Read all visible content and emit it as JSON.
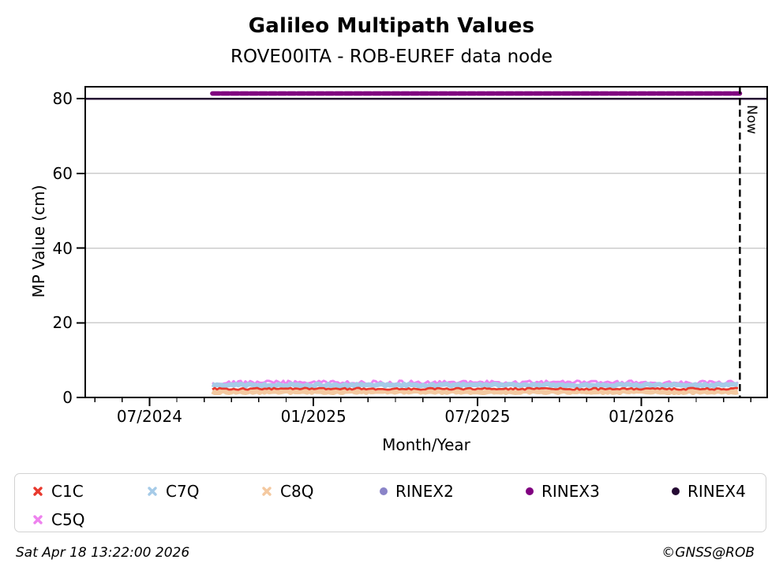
{
  "header": {
    "title": "Galileo Multipath Values",
    "subtitle": "ROVE00ITA - ROB-EUREF data node"
  },
  "footer": {
    "timestamp": "Sat Apr 18 13:22:00 2026",
    "credit": "©GNSS@ROB"
  },
  "chart_data": {
    "type": "scatter",
    "title": "Galileo Multipath Values",
    "subtitle": "ROVE00ITA - ROB-EUREF data node",
    "xlabel": "Month/Year",
    "ylabel": "MP Value (cm)",
    "ylim": [
      0,
      83.2
    ],
    "y_ticks": [
      0,
      20,
      40,
      60,
      80
    ],
    "grid_y": [
      20,
      40,
      60
    ],
    "grid_color": "#cccccc",
    "grid_on": true,
    "x_domain_months_since_jan2024": [
      3.65,
      28.6
    ],
    "x_major_ticks": [
      {
        "label": "07/2024",
        "m": 6
      },
      {
        "label": "01/2025",
        "m": 12
      },
      {
        "label": "07/2025",
        "m": 18
      },
      {
        "label": "01/2026",
        "m": 24
      }
    ],
    "x_minor_tick_months": [
      4,
      5,
      6,
      7,
      8,
      9,
      10,
      11,
      12,
      13,
      14,
      15,
      16,
      17,
      18,
      19,
      20,
      21,
      22,
      23,
      24,
      25,
      26,
      27,
      28
    ],
    "now_line": {
      "label": "Now",
      "m": 27.6,
      "style": "dashed-black"
    },
    "series_span_months": [
      8.3,
      27.6
    ],
    "series_start_label": "09/2024",
    "series_end_label": "04/2026",
    "series": [
      {
        "name": "C1C",
        "color": "#e8392e",
        "marker": "x",
        "approx_mp_cm": 2.3,
        "noise_cm": 0.25
      },
      {
        "name": "C7Q",
        "color": "#a6cbe8",
        "marker": "x",
        "approx_mp_cm": 3.3,
        "noise_cm": 0.3
      },
      {
        "name": "C8Q",
        "color": "#f4c9a0",
        "marker": "x",
        "approx_mp_cm": 1.55,
        "noise_cm": 0.25
      },
      {
        "name": "RINEX2",
        "color": "#8a84c8",
        "marker": "dot",
        "approx_mp_cm": null,
        "noise_cm": 0
      },
      {
        "name": "RINEX3",
        "color": "#800080",
        "marker": "dot",
        "approx_mp_cm": 81.4,
        "noise_cm": 0,
        "span": "data"
      },
      {
        "name": "RINEX4",
        "color": "#250a33",
        "marker": "dot",
        "approx_mp_cm": 80,
        "noise_cm": 0,
        "span": "full_axis"
      },
      {
        "name": "C5Q",
        "color": "#ee82ee",
        "marker": "x",
        "approx_mp_cm": 4.0,
        "noise_cm": 0.5
      }
    ],
    "legend_position": "bottom"
  },
  "legend": {
    "rows": [
      [
        "C1C",
        "C7Q",
        "C8Q",
        "RINEX2",
        "RINEX3",
        "RINEX4"
      ],
      [
        "C5Q"
      ]
    ]
  }
}
